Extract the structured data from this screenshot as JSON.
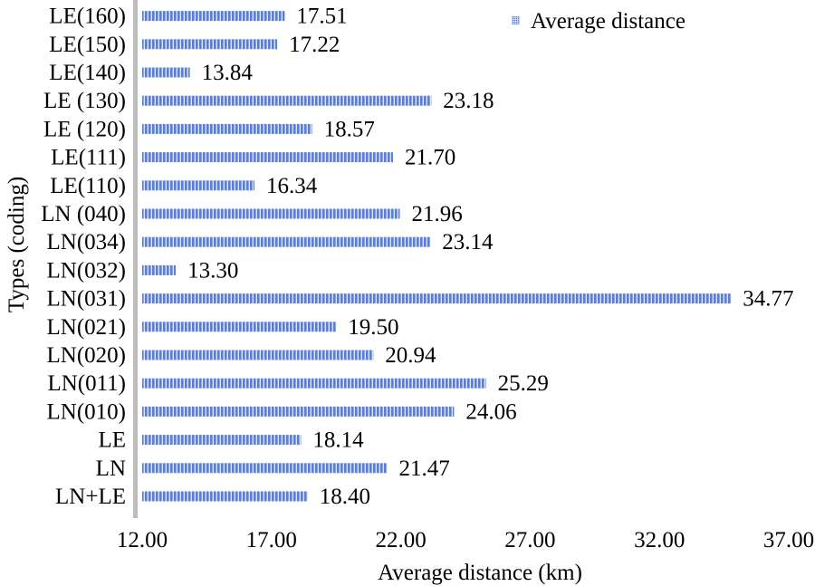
{
  "chart_data": {
    "type": "bar",
    "orientation": "horizontal",
    "title": "",
    "xlabel": "Average distance (km)",
    "ylabel": "Types (coding)",
    "xlim": [
      12,
      37
    ],
    "x_ticks": [
      "12.00",
      "17.00",
      "22.00",
      "27.00",
      "32.00",
      "37.00"
    ],
    "grid": false,
    "legend_position": "top-right",
    "series": [
      {
        "name": "Average distance",
        "color": "#5b7fd6",
        "pattern": "vertical-dashed"
      }
    ],
    "categories": [
      "LE(160)",
      "LE(150)",
      "LE(140)",
      "LE (130)",
      "LE (120)",
      "LE(111)",
      "LE(110)",
      "LN (040)",
      "LN(034)",
      "LN(032)",
      "LN(031)",
      "LN(021)",
      "LN(020)",
      "LN(011)",
      "LN(010)",
      "LE",
      "LN",
      "LN+LE"
    ],
    "values": [
      17.51,
      17.22,
      13.84,
      23.18,
      18.57,
      21.7,
      16.34,
      21.96,
      23.14,
      13.3,
      34.77,
      19.5,
      20.94,
      25.29,
      24.06,
      18.14,
      21.47,
      18.4
    ],
    "value_labels": [
      "17.51",
      "17.22",
      "13.84",
      "23.18",
      "18.57",
      "21.70",
      "16.34",
      "21.96",
      "23.14",
      "13.30",
      "34.77",
      "19.50",
      "20.94",
      "25.29",
      "24.06",
      "18.14",
      "21.47",
      "18.40"
    ]
  }
}
